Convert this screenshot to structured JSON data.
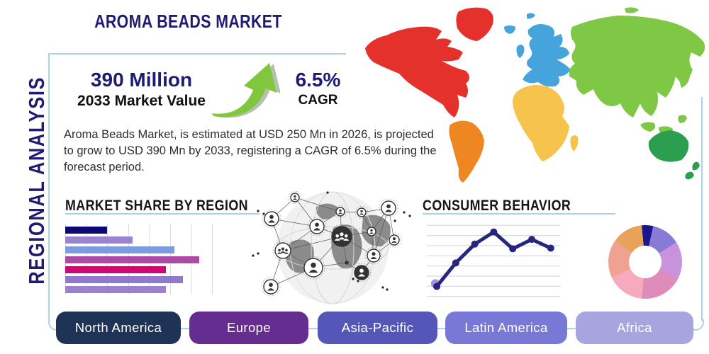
{
  "title": "AROMA BEADS MARKET",
  "side_label": "REGIONAL ANALYSIS",
  "stats": {
    "market_value": "390 Million",
    "market_value_caption": "2033 Market Value",
    "cagr": "6.5%",
    "cagr_caption": "CAGR"
  },
  "description": "Aroma Beads Market, is estimated at USD 250 Mn in 2026, is projected to grow to USD 390 Mn by 2033, registering a CAGR of 6.5% during the forecast period.",
  "sections": {
    "market_share_title": "MARKET SHARE BY REGION",
    "consumer_behavior_title": "CONSUMER BEHAVIOR"
  },
  "regions": [
    {
      "label": "North America",
      "color": "#1e3355"
    },
    {
      "label": "Europe",
      "color": "#662d91"
    },
    {
      "label": "Asia-Pacific",
      "color": "#5456b8"
    },
    {
      "label": "Latin America",
      "color": "#7879d6"
    },
    {
      "label": "Africa",
      "color": "#a7a4e0"
    }
  ],
  "map_region_colors": {
    "north_america": "#e5312b",
    "south_america": "#ee8722",
    "europe": "#45a4dc",
    "africa": "#f6c34c",
    "asia": "#7fc845",
    "oceania": "#2b9e50"
  },
  "accent_colors": {
    "box_border": "#abd3e6",
    "navy_text": "#1e1b72",
    "arrow_green": "#80c73d"
  },
  "chart_data": [
    {
      "type": "bar",
      "title": "MARKET SHARE BY REGION",
      "orientation": "horizontal",
      "note": "no axis labels shown; values estimated in gridline units (1 unit = 1 gridline step)",
      "values": [
        2.0,
        3.2,
        5.2,
        6.4,
        4.8,
        5.6,
        4.8
      ],
      "colors": [
        "#0a0a72",
        "#9b84cf",
        "#7b9ce0",
        "#ad4aa5",
        "#ce0a70",
        "#8f7ad0",
        "#9a82d0"
      ],
      "grid": "vertical-lines"
    },
    {
      "type": "line",
      "title": "CONSUMER BEHAVIOR",
      "note": "no axis labels shown; y values estimated on 0-100 relative scale",
      "x": [
        1,
        2,
        3,
        4,
        5,
        6,
        7
      ],
      "y": [
        12,
        47,
        75,
        93,
        68,
        82,
        69
      ],
      "line_color": "#26267e",
      "first_point_halo_color": "#a492dc",
      "grid_color": "#d9d9d9",
      "gridlines": 8
    },
    {
      "type": "pie",
      "donut": true,
      "note": "no labels shown; slice percents estimated from angles, clockwise from top",
      "slices": [
        {
          "value": 3.5,
          "color": "#1a1690"
        },
        {
          "value": 12.5,
          "color": "#8a7ad8"
        },
        {
          "value": 16.5,
          "color": "#c892dc"
        },
        {
          "value": 19.0,
          "color": "#e08cba"
        },
        {
          "value": 16.5,
          "color": "#f5abbd"
        },
        {
          "value": 17.0,
          "color": "#f0a290"
        },
        {
          "value": 13.5,
          "color": "#e9a259"
        },
        {
          "value": 1.5,
          "color": "#1a1690"
        }
      ]
    }
  ]
}
